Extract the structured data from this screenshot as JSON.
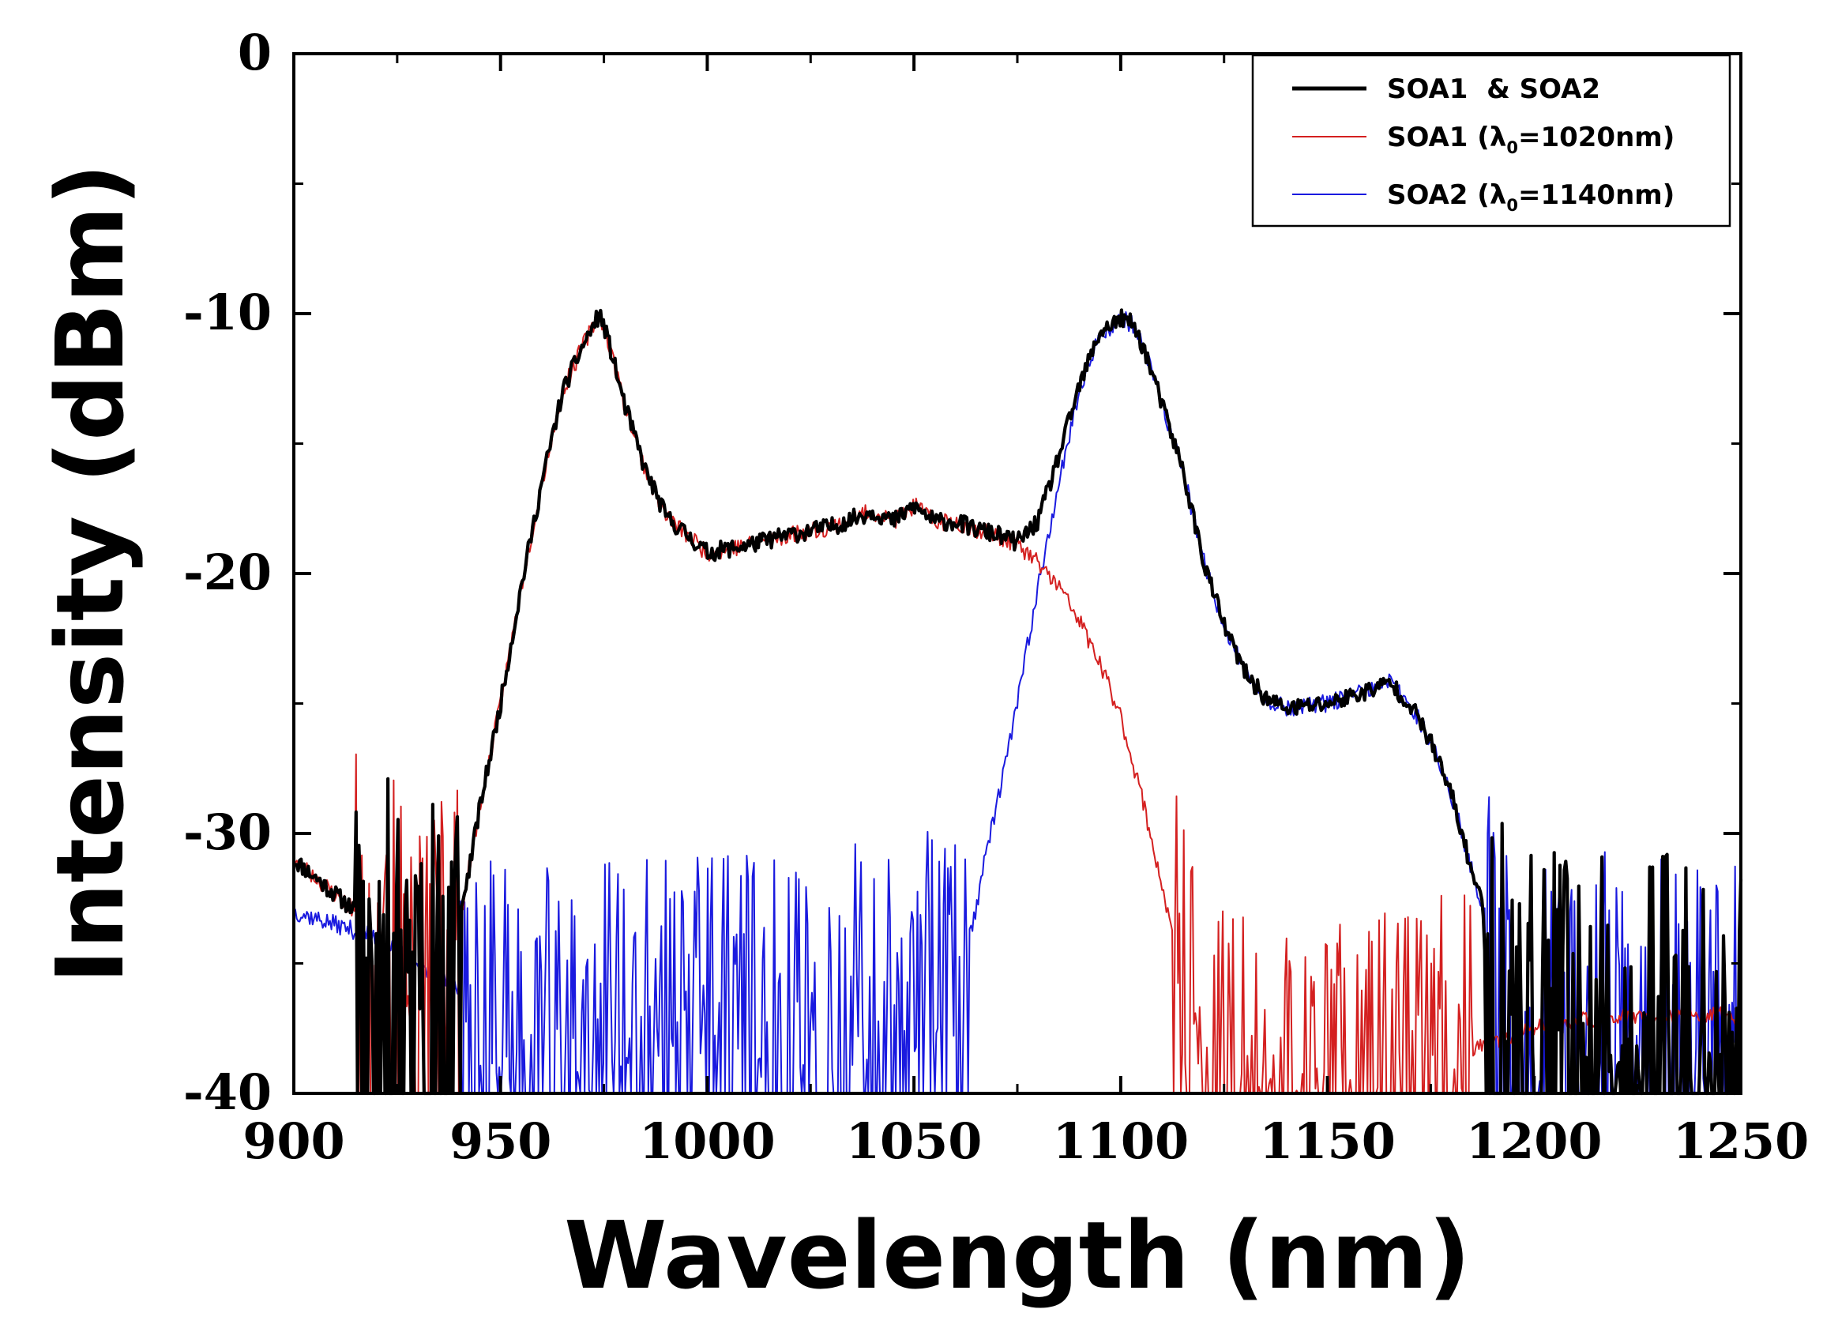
{
  "chart_data": {
    "type": "line",
    "title": "",
    "xlabel": "Wavelength (nm)",
    "ylabel": "Intensity (dBm)",
    "xlim": [
      900,
      1250
    ],
    "ylim": [
      -40,
      0
    ],
    "x_ticks": [
      "900",
      "950",
      "1000",
      "1050",
      "1100",
      "1150",
      "1200",
      "1250"
    ],
    "y_ticks": [
      "0",
      "-10",
      "-20",
      "-30",
      "-40"
    ],
    "grid": false,
    "legend_position": "top-right",
    "colors": {
      "combined": "#000000",
      "soa1": "#d42020",
      "soa2": "#1a1adf"
    },
    "series": [
      {
        "key": "combined",
        "name": "SOA1  & SOA2",
        "noise_floor": [
          [
            900,
            1020,
            -36
          ],
          [
            1185,
            1250,
            -36
          ]
        ],
        "x": [
          900,
          915,
          930,
          940,
          945,
          950,
          955,
          960,
          965,
          970,
          974,
          976,
          980,
          985,
          990,
          1000,
          1010,
          1020,
          1030,
          1040,
          1045,
          1050,
          1055,
          1060,
          1065,
          1070,
          1075,
          1080,
          1085,
          1090,
          1095,
          1100,
          1103,
          1106,
          1110,
          1115,
          1120,
          1125,
          1130,
          1135,
          1140,
          1150,
          1160,
          1165,
          1170,
          1175,
          1180,
          1185,
          1190,
          1195,
          1200,
          1210,
          1220,
          1230,
          1240,
          1250
        ],
        "y": [
          -31,
          -33,
          -35,
          -33.5,
          -29,
          -25,
          -20.5,
          -16.5,
          -13,
          -11.2,
          -10,
          -11,
          -13.5,
          -16,
          -17.8,
          -19.2,
          -18.9,
          -18.5,
          -18.2,
          -17.6,
          -18,
          -17.4,
          -18,
          -18,
          -18.3,
          -18.5,
          -18.8,
          -18,
          -15.5,
          -12.8,
          -10.7,
          -10.2,
          -10.4,
          -11.5,
          -13.5,
          -16,
          -19.5,
          -22,
          -23.8,
          -24.8,
          -25.2,
          -25,
          -24.5,
          -24.2,
          -25,
          -26.5,
          -28.5,
          -31.5,
          -34,
          -36,
          -37,
          -37,
          -37,
          -37,
          -37,
          -37
        ]
      },
      {
        "key": "soa1",
        "name": "SOA1 (λ0=1020nm)",
        "noise_floor": [
          [
            900,
            940,
            -36
          ],
          [
            1110,
            1185,
            -37
          ]
        ],
        "x": [
          900,
          915,
          930,
          940,
          945,
          950,
          955,
          960,
          965,
          970,
          974,
          976,
          980,
          985,
          990,
          1000,
          1010,
          1020,
          1030,
          1040,
          1045,
          1050,
          1055,
          1060,
          1065,
          1070,
          1075,
          1080,
          1085,
          1090,
          1095,
          1100,
          1105,
          1110,
          1115,
          1120,
          1130,
          1150,
          1170,
          1190,
          1200,
          1220,
          1250
        ],
        "y": [
          -31,
          -33,
          -35,
          -33.5,
          -29,
          -25,
          -20.5,
          -16.5,
          -13,
          -11.2,
          -10,
          -11,
          -13.5,
          -16,
          -17.8,
          -19.2,
          -18.9,
          -18.5,
          -18.2,
          -17.6,
          -18,
          -17.4,
          -18,
          -18,
          -18.3,
          -18.5,
          -18.9,
          -19.6,
          -20.5,
          -21.8,
          -23.5,
          -25.5,
          -28.5,
          -32,
          -36,
          -39,
          -39.5,
          -39.5,
          -39,
          -38,
          -37.5,
          -37,
          -37
        ]
      },
      {
        "key": "soa2",
        "name": "SOA2 (λ0=1140nm)",
        "noise_floor": [
          [
            940,
            1065,
            -37
          ],
          [
            1185,
            1250,
            -36
          ]
        ],
        "x": [
          900,
          920,
          940,
          960,
          1000,
          1040,
          1060,
          1065,
          1067,
          1070,
          1075,
          1080,
          1085,
          1090,
          1095,
          1100,
          1103,
          1106,
          1110,
          1115,
          1120,
          1125,
          1130,
          1135,
          1140,
          1150,
          1160,
          1165,
          1170,
          1175,
          1180,
          1185,
          1190,
          1195,
          1200,
          1210,
          1220,
          1230,
          1240,
          1250
        ],
        "y": [
          -33,
          -34,
          -36,
          -37.5,
          -37,
          -36.5,
          -36,
          -33,
          -31,
          -29,
          -25,
          -20.5,
          -16.5,
          -13,
          -10.8,
          -10.2,
          -10.4,
          -11.5,
          -13.5,
          -16,
          -19.5,
          -22,
          -23.8,
          -24.8,
          -25.2,
          -25,
          -24.5,
          -24.2,
          -25,
          -26.5,
          -28.5,
          -31.5,
          -34,
          -36,
          -37,
          -37,
          -37,
          -37,
          -37,
          -37
        ]
      }
    ]
  }
}
